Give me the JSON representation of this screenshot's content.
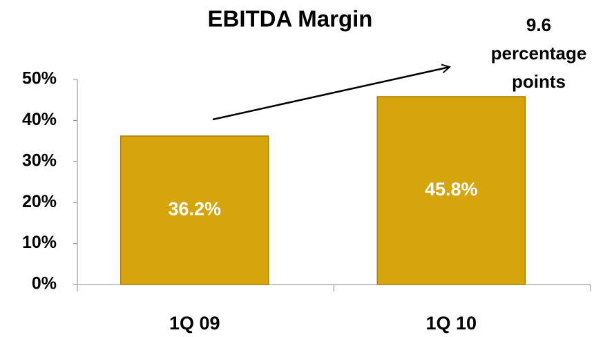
{
  "chart_data": {
    "type": "bar",
    "title": "EBITDA Margin",
    "categories": [
      "1Q 09",
      "1Q 10"
    ],
    "values": [
      36.2,
      45.8
    ],
    "value_labels": [
      "36.2%",
      "45.8%"
    ],
    "color": "#d6a40c",
    "ylim": [
      0,
      50
    ],
    "yticks": [
      {
        "value": 0,
        "label": "0%"
      },
      {
        "value": 10,
        "label": "10%"
      },
      {
        "value": 20,
        "label": "20%"
      },
      {
        "value": 30,
        "label": "30%"
      },
      {
        "value": 40,
        "label": "40%"
      },
      {
        "value": 50,
        "label": "50%"
      }
    ],
    "annotation": "9.6 percentage points"
  }
}
